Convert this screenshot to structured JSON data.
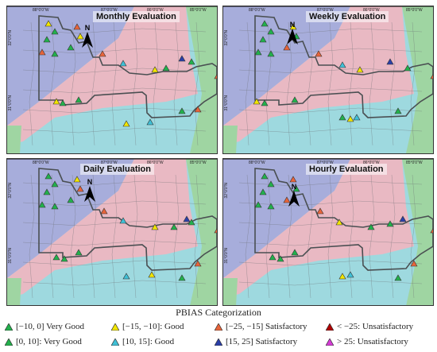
{
  "panels": [
    {
      "title": "Monthly Evaluation",
      "lon_ticks": [
        "88°0'0\"W",
        "87°0'0\"W",
        "86°0'0\"W",
        "85°0'0\"W"
      ],
      "lat_ticks": [
        "32°0'0\"N",
        "31°0'0\"N"
      ]
    },
    {
      "title": "Weekly Evaluation",
      "lon_ticks": [
        "88°0'0\"W",
        "87°0'0\"W",
        "86°0'0\"W",
        "85°0'0\"W"
      ],
      "lat_ticks": [
        "32°0'0\"N",
        "31°0'0\"N"
      ]
    },
    {
      "title": "Daily Evaluation",
      "lon_ticks": [
        "88°0'0\"W",
        "87°0'0\"W",
        "86°0'0\"W",
        "85°0'0\"W"
      ],
      "lat_ticks": [
        "32°0'0\"N",
        "31°0'0\"N"
      ]
    },
    {
      "title": "Hourly Evaluation",
      "lon_ticks": [
        "88°0'0\"W",
        "87°0'0\"W",
        "86°0'0\"W",
        "85°0'0\"W"
      ],
      "lat_ticks": [
        "32°0'0\"N",
        "31°0'0\"N"
      ]
    }
  ],
  "north_label": "N",
  "legend": {
    "title": "PBIAS Categorization",
    "items": [
      {
        "label": "[−10, 0] Very Good",
        "color": "#22b14c"
      },
      {
        "label": "[0, 10]: Very Good",
        "color": "#22b14c"
      },
      {
        "label": "[−15, −10]: Good",
        "color": "#f2e600"
      },
      {
        "label": "[10, 15]: Good",
        "color": "#3fc0d6"
      },
      {
        "label": "[−25, −15] Satisfactory",
        "color": "#e8643a"
      },
      {
        "label": "[15, 25] Satisfactory",
        "color": "#2a3fa8"
      },
      {
        "label": "< −25: Unsatisfactory",
        "color": "#b00000"
      },
      {
        "label": "> 25: Unsatisfactory",
        "color": "#d63cd6"
      }
    ]
  },
  "colors": {
    "region_blue": "#a7addb",
    "region_pink": "#e9b9c3",
    "region_green": "#9fd5a2",
    "region_cyan": "#9ed9df",
    "boundary": "#4a4f52",
    "county_line": "#6b6f73"
  }
}
